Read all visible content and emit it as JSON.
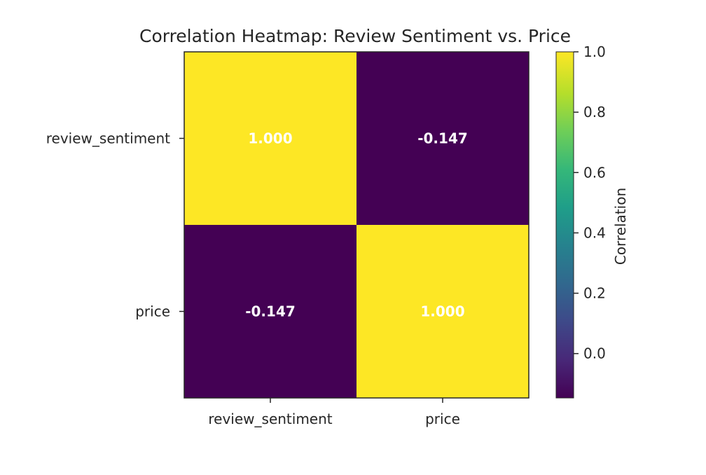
{
  "chart_data": {
    "type": "heatmap",
    "title": "Correlation Heatmap: Review Sentiment vs. Price",
    "x_categories": [
      "review_sentiment",
      "price"
    ],
    "y_categories": [
      "review_sentiment",
      "price"
    ],
    "matrix": [
      [
        1.0,
        -0.147
      ],
      [
        -0.147,
        1.0
      ]
    ],
    "cell_labels": [
      [
        "1.000",
        "-0.147"
      ],
      [
        "-0.147",
        "1.000"
      ]
    ],
    "colormap": "viridis",
    "colorbar": {
      "label": "Correlation",
      "range": [
        -0.147,
        1.0
      ],
      "ticks": [
        0.0,
        0.2,
        0.4,
        0.6,
        0.8,
        1.0
      ],
      "tick_labels": [
        "0.0",
        "0.2",
        "0.4",
        "0.6",
        "0.8",
        "1.0"
      ]
    },
    "colors": {
      "low": "#440154",
      "high": "#fde725",
      "annotation_text": "#ffffff"
    }
  }
}
